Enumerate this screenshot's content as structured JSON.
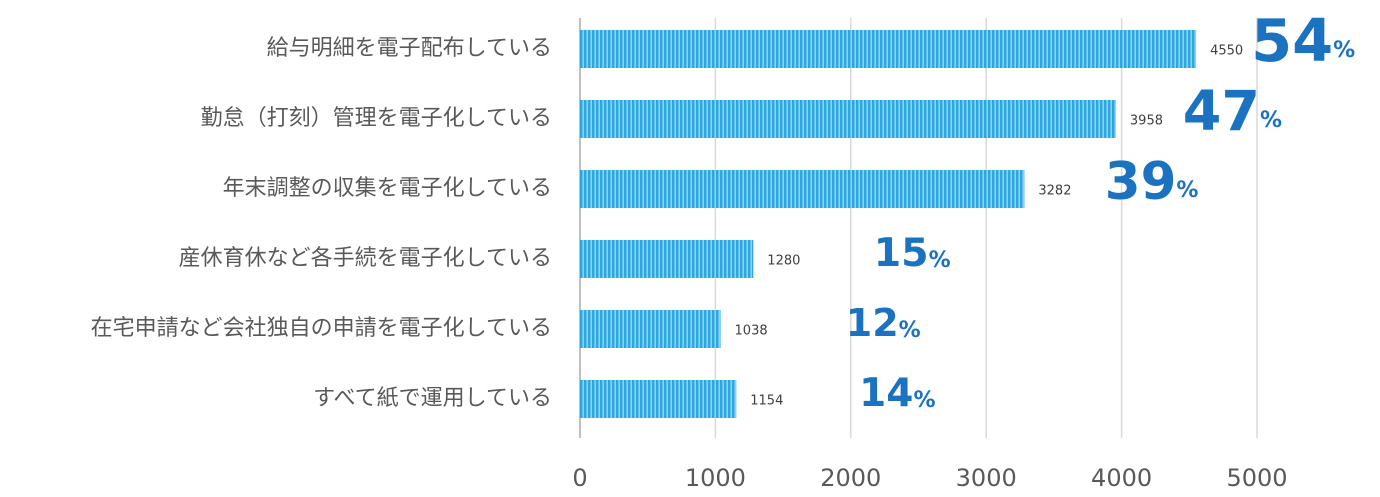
{
  "chart_data": {
    "type": "hbar",
    "categories": [
      "給与明細を電子配布している",
      "勤怠（打刻）管理を電子化している",
      "年末調整の収集を電子化している",
      "産休育休など各手続を電子化している",
      "在宅申請など会社独自の申請を電子化している",
      "すべて紙で運用している"
    ],
    "values": [
      4550,
      3958,
      3282,
      1280,
      1038,
      1154
    ],
    "percentages": [
      54,
      47,
      39,
      15,
      12,
      14
    ],
    "percent_sign": "%",
    "color": "#29a8e0",
    "percent_color": "#1b72c0",
    "xlim": [
      0,
      5000
    ],
    "xticks": [
      0,
      1000,
      2000,
      3000,
      4000,
      5000
    ],
    "grid": true
  }
}
